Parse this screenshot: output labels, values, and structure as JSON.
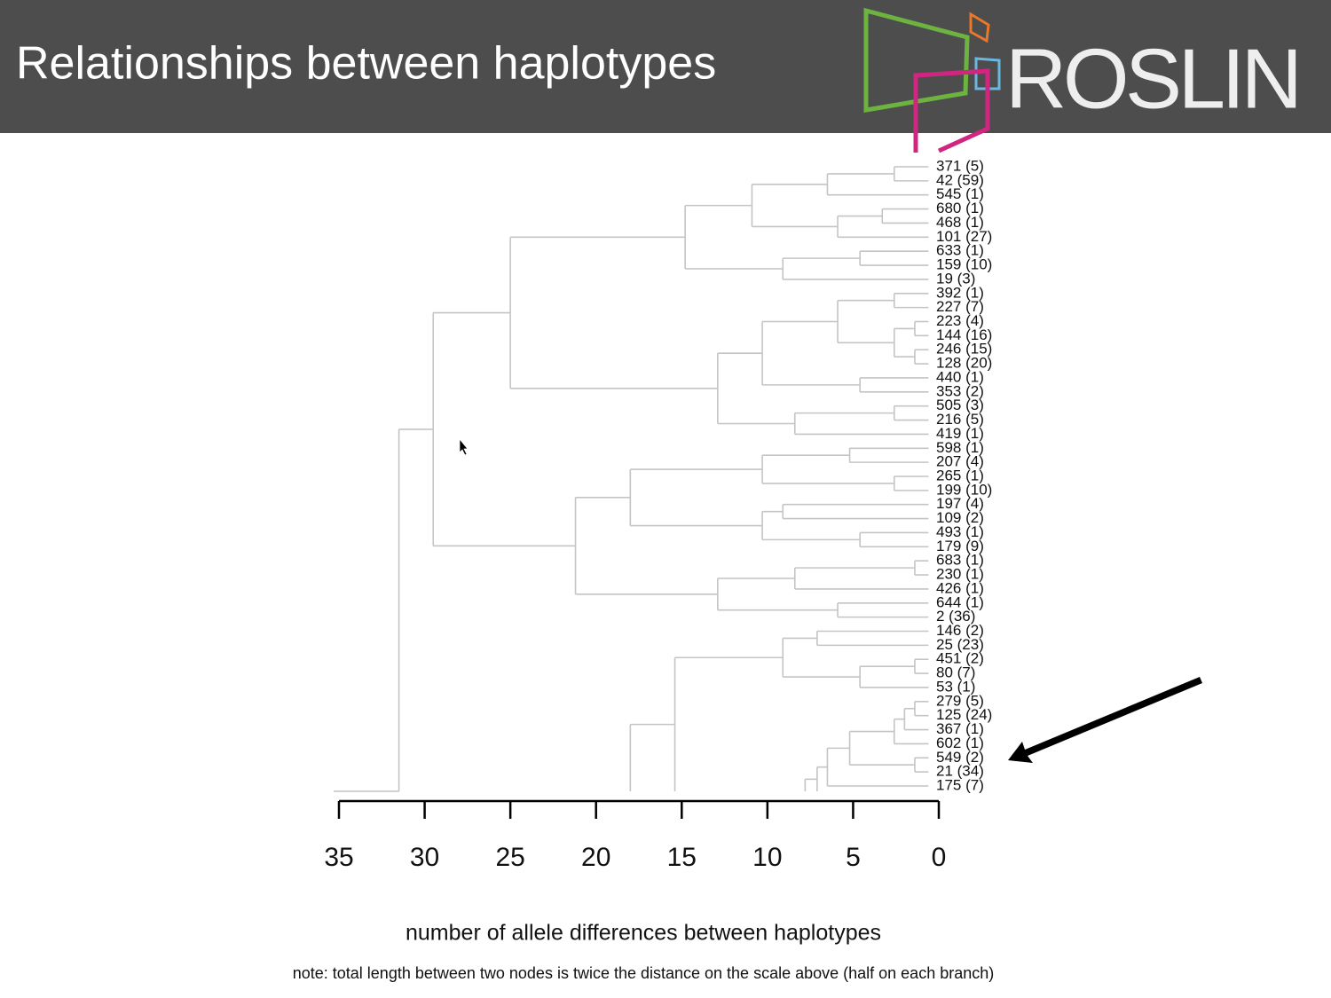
{
  "slide": {
    "title": "Relationships between haplotypes",
    "logo": "ROSLIN"
  },
  "chart_data": {
    "type": "dendrogram",
    "xlim": [
      35,
      0
    ],
    "xticks": [
      35,
      30,
      25,
      20,
      15,
      10,
      5,
      0
    ],
    "xlabel": "number of allele differences between haplotypes",
    "note": "note: total length between two nodes is twice the distance on the scale above (half on each branch)",
    "color": "#c4c4c4",
    "trees": [
      {
        "height": 31.5,
        "children": [
          {
            "height": 29.5,
            "children": [
              {
                "height": 25.0,
                "children": [
                  {
                    "height": 14.8,
                    "children": [
                      {
                        "height": 10.9,
                        "children": [
                          {
                            "height": 6.5,
                            "children": [
                              {
                                "height": 2.6,
                                "children": [
                                  {
                                    "label": "371 (5)"
                                  },
                                  {
                                    "label": "42 (59)"
                                  }
                                ]
                              },
                              {
                                "label": "545 (1)"
                              }
                            ]
                          },
                          {
                            "height": 5.9,
                            "children": [
                              {
                                "height": 3.3,
                                "children": [
                                  {
                                    "label": "680 (1)"
                                  },
                                  {
                                    "label": "468 (1)"
                                  }
                                ]
                              },
                              {
                                "label": "101 (27)"
                              }
                            ]
                          }
                        ]
                      },
                      {
                        "height": 9.1,
                        "children": [
                          {
                            "height": 4.6,
                            "children": [
                              {
                                "label": "633 (1)"
                              },
                              {
                                "label": "159 (10)"
                              }
                            ]
                          },
                          {
                            "label": "19 (3)"
                          }
                        ]
                      }
                    ]
                  },
                  {
                    "height": 12.9,
                    "children": [
                      {
                        "height": 10.3,
                        "children": [
                          {
                            "height": 5.9,
                            "children": [
                              {
                                "height": 2.6,
                                "children": [
                                  {
                                    "label": "392 (1)"
                                  },
                                  {
                                    "label": "227 (7)"
                                  }
                                ]
                              },
                              {
                                "height": 2.6,
                                "children": [
                                  {
                                    "height": 1.4,
                                    "children": [
                                      {
                                        "label": "223 (4)"
                                      },
                                      {
                                        "label": "144 (16)"
                                      }
                                    ]
                                  },
                                  {
                                    "height": 1.4,
                                    "children": [
                                      {
                                        "label": "246 (15)"
                                      },
                                      {
                                        "label": "128 (20)"
                                      }
                                    ]
                                  }
                                ]
                              }
                            ]
                          },
                          {
                            "height": 4.6,
                            "children": [
                              {
                                "label": "440 (1)"
                              },
                              {
                                "label": "353 (2)"
                              }
                            ]
                          }
                        ]
                      },
                      {
                        "height": 8.4,
                        "children": [
                          {
                            "height": 2.6,
                            "children": [
                              {
                                "label": "505 (3)"
                              },
                              {
                                "label": "216 (5)"
                              }
                            ]
                          },
                          {
                            "label": "419 (1)"
                          }
                        ]
                      }
                    ]
                  }
                ]
              },
              {
                "height": 21.2,
                "children": [
                  {
                    "height": 18.0,
                    "children": [
                      {
                        "height": 10.3,
                        "children": [
                          {
                            "height": 5.2,
                            "children": [
                              {
                                "label": "598 (1)"
                              },
                              {
                                "label": "207 (4)"
                              }
                            ]
                          },
                          {
                            "height": 2.6,
                            "children": [
                              {
                                "label": "265 (1)"
                              },
                              {
                                "label": "199 (10)"
                              }
                            ]
                          }
                        ]
                      },
                      {
                        "height": 10.3,
                        "children": [
                          {
                            "height": 9.1,
                            "children": [
                              {
                                "label": "197 (4)"
                              },
                              {
                                "label": "109 (2)"
                              }
                            ]
                          },
                          {
                            "height": 4.6,
                            "children": [
                              {
                                "label": "493 (1)"
                              },
                              {
                                "label": "179 (9)"
                              }
                            ]
                          }
                        ]
                      }
                    ]
                  },
                  {
                    "height": 12.9,
                    "children": [
                      {
                        "height": 8.4,
                        "children": [
                          {
                            "height": 1.4,
                            "children": [
                              {
                                "label": "683 (1)"
                              },
                              {
                                "label": "230 (1)"
                              }
                            ]
                          },
                          {
                            "label": "426 (1)"
                          }
                        ]
                      },
                      {
                        "height": 5.9,
                        "children": [
                          {
                            "label": "644 (1)"
                          },
                          {
                            "label": "2 (36)"
                          }
                        ]
                      }
                    ]
                  }
                ]
              }
            ]
          }
        ]
      },
      {
        "height": 18.0,
        "children": [
          {
            "height": 15.4,
            "children": [
              {
                "height": 9.1,
                "children": [
                  {
                    "height": 7.1,
                    "children": [
                      {
                        "label": "146 (2)"
                      },
                      {
                        "label": "25 (23)"
                      }
                    ]
                  },
                  {
                    "height": 4.6,
                    "children": [
                      {
                        "height": 1.4,
                        "children": [
                          {
                            "label": "451 (2)"
                          },
                          {
                            "label": "80 (7)"
                          }
                        ]
                      },
                      {
                        "label": "53 (1)"
                      }
                    ]
                  }
                ]
              }
            ]
          }
        ]
      },
      {
        "height": 7.8,
        "children": [
          {
            "height": 7.1,
            "children": [
              {
                "height": 6.5,
                "children": [
                  {
                    "height": 5.2,
                    "children": [
                      {
                        "height": 2.6,
                        "children": [
                          {
                            "height": 2.0,
                            "children": [
                              {
                                "height": 1.4,
                                "children": [
                                  {
                                    "label": "279 (5)"
                                  },
                                  {
                                    "label": "125 (24)"
                                  }
                                ]
                              },
                              {
                                "label": "367 (1)"
                              }
                            ]
                          },
                          {
                            "label": "602 (1)"
                          }
                        ]
                      },
                      {
                        "height": 1.4,
                        "children": [
                          {
                            "label": "549 (2)"
                          },
                          {
                            "label": "21 (34)"
                          }
                        ]
                      }
                    ]
                  },
                  {
                    "label": "175 (7)"
                  }
                ]
              }
            ]
          }
        ]
      }
    ]
  }
}
